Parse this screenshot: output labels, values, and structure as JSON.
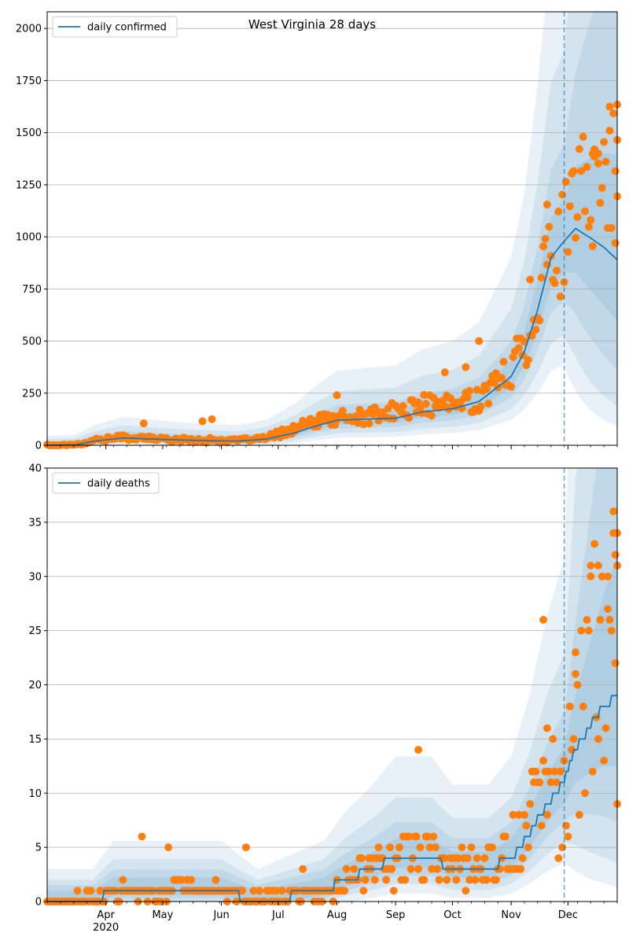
{
  "colors": {
    "line": "#1f77b4",
    "band": "#1f77b4",
    "points": "#ff7f0e",
    "grid": "#b0b0b0"
  },
  "months": [
    "Apr",
    "May",
    "Jun",
    "Jul",
    "Aug",
    "Sep",
    "Oct",
    "Nov",
    "Dec"
  ],
  "year_label": "2020",
  "chart_data": [
    {
      "type": "line",
      "title": "West Virginia 28 days",
      "legend": "daily confirmed",
      "legend_loc": "upper-left",
      "x_range": [
        "2020-03-01",
        "2020-12-27"
      ],
      "ylim": [
        0,
        2080
      ],
      "yticks": [
        0,
        250,
        500,
        750,
        1000,
        1250,
        1500,
        1750,
        2000
      ],
      "grid": "y",
      "forecast_start": "2020-11-29",
      "model_anchor": [
        [
          "2020-03-01",
          0
        ],
        [
          "2020-03-16",
          2
        ],
        [
          "2020-03-26",
          20
        ],
        [
          "2020-04-10",
          35
        ],
        [
          "2020-04-25",
          30
        ],
        [
          "2020-05-10",
          25
        ],
        [
          "2020-05-25",
          22
        ],
        [
          "2020-06-10",
          20
        ],
        [
          "2020-06-25",
          30
        ],
        [
          "2020-07-10",
          60
        ],
        [
          "2020-07-20",
          90
        ],
        [
          "2020-08-01",
          120
        ],
        [
          "2020-08-15",
          125
        ],
        [
          "2020-09-01",
          130
        ],
        [
          "2020-09-15",
          160
        ],
        [
          "2020-10-01",
          175
        ],
        [
          "2020-10-15",
          210
        ],
        [
          "2020-10-25",
          280
        ],
        [
          "2020-11-01",
          330
        ],
        [
          "2020-11-08",
          450
        ],
        [
          "2020-11-15",
          650
        ],
        [
          "2020-11-22",
          900
        ],
        [
          "2020-11-29",
          980
        ],
        [
          "2020-12-05",
          1040
        ],
        [
          "2020-12-12",
          1000
        ],
        [
          "2020-12-20",
          950
        ],
        [
          "2020-12-27",
          890
        ]
      ],
      "obs_anchor": [
        [
          "2020-03-01",
          0
        ],
        [
          "2020-03-16",
          2
        ],
        [
          "2020-03-26",
          25
        ],
        [
          "2020-04-10",
          38
        ],
        [
          "2020-04-25",
          32
        ],
        [
          "2020-05-10",
          27
        ],
        [
          "2020-05-25",
          25
        ],
        [
          "2020-06-10",
          22
        ],
        [
          "2020-06-25",
          35
        ],
        [
          "2020-07-10",
          80
        ],
        [
          "2020-07-20",
          110
        ],
        [
          "2020-08-01",
          130
        ],
        [
          "2020-08-15",
          135
        ],
        [
          "2020-09-01",
          160
        ],
        [
          "2020-09-15",
          190
        ],
        [
          "2020-10-01",
          190
        ],
        [
          "2020-10-15",
          230
        ],
        [
          "2020-10-25",
          290
        ],
        [
          "2020-11-01",
          380
        ],
        [
          "2020-11-08",
          480
        ],
        [
          "2020-11-15",
          720
        ],
        [
          "2020-11-22",
          930
        ],
        [
          "2020-11-29",
          980
        ],
        [
          "2020-12-05",
          1120
        ],
        [
          "2020-12-12",
          1250
        ],
        [
          "2020-12-20",
          1300
        ],
        [
          "2020-12-27",
          1300
        ]
      ],
      "obs_noise": 0.28,
      "seed": 17,
      "highlights": [
        [
          "2020-04-21",
          105
        ],
        [
          "2020-05-22",
          115
        ],
        [
          "2020-05-27",
          125
        ],
        [
          "2020-10-15",
          500
        ],
        [
          "2020-10-08",
          375
        ],
        [
          "2020-09-27",
          350
        ],
        [
          "2020-08-01",
          240
        ],
        [
          "2020-11-11",
          795
        ],
        [
          "2020-11-20",
          1155
        ],
        [
          "2020-12-14",
          1400
        ],
        [
          "2020-12-15",
          1420
        ],
        [
          "2020-12-17",
          1400
        ],
        [
          "2020-12-23",
          1510
        ],
        [
          "2020-12-27",
          1635
        ],
        [
          "2020-12-27",
          1465
        ],
        [
          "2020-12-26",
          1315
        ]
      ]
    },
    {
      "type": "line",
      "title": "",
      "legend": "daily deaths",
      "legend_loc": "upper-left",
      "x_range": [
        "2020-03-01",
        "2020-12-27"
      ],
      "ylim": [
        0,
        40
      ],
      "yticks": [
        0,
        5,
        10,
        15,
        20,
        25,
        30,
        35,
        40
      ],
      "grid": "y",
      "forecast_start": "2020-11-29",
      "model_anchor": [
        [
          "2020-03-01",
          0
        ],
        [
          "2020-03-25",
          0
        ],
        [
          "2020-04-05",
          1
        ],
        [
          "2020-06-01",
          1
        ],
        [
          "2020-06-20",
          0
        ],
        [
          "2020-07-25",
          1
        ],
        [
          "2020-08-05",
          2
        ],
        [
          "2020-08-20",
          3
        ],
        [
          "2020-09-01",
          4
        ],
        [
          "2020-09-20",
          4
        ],
        [
          "2020-10-01",
          3
        ],
        [
          "2020-10-20",
          3
        ],
        [
          "2020-11-01",
          4
        ],
        [
          "2020-11-10",
          6
        ],
        [
          "2020-11-20",
          9
        ],
        [
          "2020-11-29",
          11
        ],
        [
          "2020-12-05",
          14
        ],
        [
          "2020-12-12",
          16
        ],
        [
          "2020-12-20",
          18
        ],
        [
          "2020-12-27",
          19
        ]
      ],
      "obs_anchor": [
        [
          "2020-03-01",
          0
        ],
        [
          "2020-03-25",
          0
        ],
        [
          "2020-04-05",
          1
        ],
        [
          "2020-06-01",
          1
        ],
        [
          "2020-06-20",
          0
        ],
        [
          "2020-07-25",
          1
        ],
        [
          "2020-08-05",
          2
        ],
        [
          "2020-08-20",
          3
        ],
        [
          "2020-09-01",
          4
        ],
        [
          "2020-09-20",
          4
        ],
        [
          "2020-10-01",
          3
        ],
        [
          "2020-10-20",
          3
        ],
        [
          "2020-11-01",
          5
        ],
        [
          "2020-11-10",
          7
        ],
        [
          "2020-11-20",
          10
        ],
        [
          "2020-11-29",
          12
        ],
        [
          "2020-12-05",
          14
        ],
        [
          "2020-12-12",
          20
        ],
        [
          "2020-12-20",
          25
        ],
        [
          "2020-12-27",
          30
        ]
      ],
      "obs_noise": 0.6,
      "seed": 29,
      "integer": true,
      "highlights": [
        [
          "2020-04-20",
          6
        ],
        [
          "2020-05-04",
          5
        ],
        [
          "2020-06-14",
          5
        ],
        [
          "2020-07-14",
          3
        ],
        [
          "2020-09-13",
          14
        ],
        [
          "2020-11-18",
          26
        ],
        [
          "2020-11-20",
          16
        ],
        [
          "2020-12-25",
          36
        ],
        [
          "2020-12-26",
          34
        ],
        [
          "2020-12-27",
          34
        ],
        [
          "2020-12-13",
          30
        ],
        [
          "2020-12-17",
          31
        ],
        [
          "2020-12-22",
          30
        ],
        [
          "2020-12-05",
          23
        ],
        [
          "2020-12-27",
          9
        ],
        [
          "2020-12-26",
          22
        ]
      ]
    }
  ]
}
